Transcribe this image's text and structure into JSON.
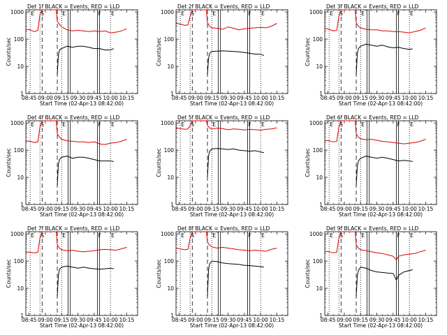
{
  "figure": {
    "xlabel": "Start Time (02-Apr-13 08:42:00)",
    "ylabel": "Counts/sec",
    "x_ticks": [
      "08:45",
      "09:00",
      "09:15",
      "09:30",
      "09:45",
      "10:00",
      "10:15"
    ],
    "x_tick_minutes": [
      525,
      540,
      555,
      570,
      585,
      600,
      615
    ],
    "x_range_minutes": [
      522,
      625
    ],
    "y_ticks": [
      "1",
      "10",
      "100",
      "1000"
    ],
    "y_tick_values": [
      1,
      10,
      100,
      1000
    ],
    "y_range": [
      1,
      1200
    ],
    "y_scale": "log",
    "colors": {
      "events": "#000000",
      "lld": "#dd0000",
      "frame": "#000000"
    },
    "marker_lines": [
      {
        "label": "E",
        "minute": 526,
        "style": "dotted"
      },
      {
        "label": "S",
        "minute": 535,
        "style": "dotted"
      },
      {
        "label": "",
        "minute": 537,
        "style": "dashed"
      },
      {
        "label": "",
        "minute": 551,
        "style": "dashed"
      },
      {
        "label": "E",
        "minute": 555,
        "style": "dotted"
      },
      {
        "label": "",
        "minute": 561,
        "style": "solid"
      },
      {
        "label": "",
        "minute": 563,
        "style": "solid"
      },
      {
        "label": "F",
        "minute": 588,
        "style": "solid"
      },
      {
        "label": "",
        "minute": 590,
        "style": "solid"
      },
      {
        "label": "E",
        "minute": 600,
        "style": "dotted"
      }
    ]
  },
  "chart_data": [
    {
      "type": "line",
      "title": "Det 1f BLACK = Events, RED = LLD",
      "series": [
        {
          "key": "lld",
          "x": [
            522,
            526,
            528,
            530,
            533,
            535,
            537,
            540,
            545,
            550,
            551,
            553,
            555,
            560,
            565,
            570,
            575,
            580,
            585,
            590,
            595,
            600,
            605,
            610,
            615
          ],
          "y": [
            230,
            220,
            200,
            190,
            210,
            800,
            1200,
            1200,
            1200,
            1200,
            450,
            350,
            280,
            220,
            200,
            210,
            200,
            190,
            200,
            190,
            200,
            170,
            180,
            200,
            240
          ]
        },
        {
          "key": "events",
          "x": [
            551,
            552,
            553,
            555,
            560,
            565,
            570,
            575,
            580,
            585,
            590,
            595,
            600,
            603
          ],
          "y": [
            5,
            25,
            40,
            45,
            55,
            50,
            55,
            55,
            50,
            45,
            45,
            40,
            40,
            45
          ]
        }
      ]
    },
    {
      "type": "line",
      "title": "Det 2f BLACK = Events, RED = LLD",
      "series": [
        {
          "key": "lld",
          "x": [
            522,
            526,
            530,
            533,
            535,
            537,
            540,
            545,
            550,
            551,
            553,
            555,
            560,
            565,
            570,
            575,
            580,
            585,
            590,
            595,
            600,
            605,
            610,
            615
          ],
          "y": [
            380,
            360,
            320,
            330,
            700,
            1200,
            1200,
            1200,
            1200,
            400,
            300,
            260,
            250,
            230,
            280,
            250,
            220,
            240,
            250,
            260,
            270,
            260,
            300,
            380
          ]
        },
        {
          "key": "events",
          "x": [
            551,
            552,
            553,
            555,
            560,
            565,
            570,
            575,
            580,
            585,
            590,
            595,
            600,
            603
          ],
          "y": [
            5,
            20,
            30,
            35,
            36,
            37,
            36,
            35,
            34,
            32,
            30,
            28,
            28,
            25
          ]
        }
      ]
    },
    {
      "type": "line",
      "title": "Det 3f BLACK = Events, RED = LLD",
      "series": [
        {
          "key": "lld",
          "x": [
            522,
            526,
            530,
            533,
            535,
            537,
            540,
            545,
            550,
            551,
            553,
            555,
            560,
            565,
            570,
            575,
            580,
            585,
            590,
            595,
            600,
            605,
            610,
            615
          ],
          "y": [
            250,
            230,
            200,
            210,
            700,
            1200,
            1200,
            1200,
            1200,
            400,
            300,
            260,
            230,
            220,
            220,
            200,
            200,
            190,
            190,
            180,
            170,
            190,
            210,
            260
          ]
        },
        {
          "key": "events",
          "x": [
            551,
            552,
            553,
            555,
            560,
            565,
            570,
            575,
            580,
            585,
            590,
            595,
            600,
            603
          ],
          "y": [
            5,
            30,
            45,
            55,
            65,
            60,
            55,
            60,
            52,
            48,
            50,
            45,
            42,
            44
          ]
        }
      ]
    },
    {
      "type": "line",
      "title": "Det 4f BLACK = Events, RED = LLD",
      "series": [
        {
          "key": "lld",
          "x": [
            522,
            526,
            530,
            533,
            535,
            537,
            540,
            545,
            550,
            551,
            553,
            555,
            560,
            565,
            570,
            575,
            580,
            585,
            590,
            595,
            600,
            605,
            610,
            615
          ],
          "y": [
            220,
            210,
            190,
            200,
            700,
            1200,
            1200,
            1200,
            1200,
            400,
            300,
            250,
            220,
            210,
            200,
            200,
            190,
            200,
            170,
            160,
            180,
            190,
            210,
            250
          ]
        },
        {
          "key": "events",
          "x": [
            551,
            552,
            553,
            555,
            560,
            565,
            570,
            575,
            580,
            585,
            590,
            595,
            600,
            603
          ],
          "y": [
            5,
            30,
            45,
            55,
            60,
            50,
            55,
            55,
            50,
            45,
            40,
            40,
            40,
            38
          ]
        }
      ]
    },
    {
      "type": "line",
      "title": "Det 5f BLACK = Events, RED = LLD",
      "series": [
        {
          "key": "lld",
          "x": [
            522,
            526,
            530,
            533,
            535,
            537,
            540,
            545,
            550,
            551,
            553,
            555,
            560,
            565,
            570,
            575,
            580,
            585,
            590,
            595,
            600,
            605,
            610,
            615
          ],
          "y": [
            650,
            620,
            580,
            600,
            800,
            1200,
            1200,
            1200,
            1200,
            800,
            650,
            600,
            640,
            620,
            560,
            600,
            580,
            550,
            580,
            560,
            540,
            580,
            600,
            660
          ]
        },
        {
          "key": "events",
          "x": [
            551,
            552,
            553,
            555,
            560,
            565,
            570,
            575,
            580,
            585,
            590,
            595,
            600,
            603
          ],
          "y": [
            10,
            60,
            90,
            110,
            115,
            110,
            105,
            110,
            100,
            95,
            90,
            95,
            85,
            80
          ]
        }
      ]
    },
    {
      "type": "line",
      "title": "Det 6f BLACK = Events, RED = LLD",
      "series": [
        {
          "key": "lld",
          "x": [
            522,
            526,
            530,
            533,
            535,
            537,
            540,
            545,
            550,
            551,
            553,
            555,
            560,
            565,
            570,
            575,
            580,
            585,
            590,
            595,
            600,
            605,
            610,
            615
          ],
          "y": [
            230,
            220,
            200,
            210,
            700,
            1200,
            1200,
            1200,
            1200,
            400,
            300,
            260,
            240,
            250,
            230,
            210,
            200,
            190,
            180,
            170,
            180,
            190,
            210,
            250
          ]
        },
        {
          "key": "events",
          "x": [
            551,
            552,
            553,
            555,
            560,
            565,
            570,
            575,
            580,
            585,
            590,
            595,
            600,
            603
          ],
          "y": [
            5,
            25,
            40,
            50,
            60,
            55,
            50,
            55,
            50,
            45,
            40,
            42,
            40,
            38
          ]
        }
      ]
    },
    {
      "type": "line",
      "title": "Det 7f BLACK = Events, RED = LLD",
      "series": [
        {
          "key": "lld",
          "x": [
            522,
            526,
            530,
            533,
            535,
            537,
            540,
            545,
            550,
            551,
            553,
            555,
            560,
            565,
            570,
            575,
            580,
            585,
            590,
            595,
            600,
            605,
            610,
            615
          ],
          "y": [
            220,
            210,
            200,
            210,
            700,
            1200,
            1200,
            1200,
            1200,
            400,
            300,
            260,
            240,
            250,
            230,
            220,
            230,
            240,
            260,
            270,
            260,
            250,
            280,
            320
          ]
        },
        {
          "key": "events",
          "x": [
            551,
            552,
            553,
            555,
            560,
            565,
            570,
            575,
            580,
            585,
            590,
            595,
            600,
            603
          ],
          "y": [
            5,
            30,
            50,
            60,
            65,
            60,
            55,
            60,
            55,
            52,
            50,
            52,
            55,
            52
          ]
        }
      ]
    },
    {
      "type": "line",
      "title": "Det 8f BLACK = Events, RED = LLD",
      "series": [
        {
          "key": "lld",
          "x": [
            522,
            526,
            530,
            533,
            535,
            537,
            540,
            545,
            550,
            551,
            553,
            555,
            560,
            565,
            570,
            575,
            580,
            585,
            590,
            595,
            600,
            605,
            610,
            615
          ],
          "y": [
            300,
            280,
            260,
            270,
            700,
            1200,
            1200,
            1200,
            1200,
            500,
            380,
            330,
            300,
            320,
            300,
            280,
            260,
            250,
            240,
            250,
            240,
            230,
            270,
            300
          ]
        },
        {
          "key": "events",
          "x": [
            551,
            552,
            553,
            555,
            560,
            565,
            570,
            575,
            580,
            585,
            590,
            595,
            600,
            603
          ],
          "y": [
            5,
            50,
            80,
            100,
            95,
            85,
            80,
            78,
            75,
            70,
            68,
            65,
            62,
            60
          ]
        }
      ]
    },
    {
      "type": "line",
      "title": "Det 9f BLACK = Events, RED = LLD",
      "series": [
        {
          "key": "lld",
          "x": [
            522,
            526,
            530,
            533,
            535,
            537,
            540,
            545,
            550,
            551,
            553,
            555,
            560,
            565,
            570,
            575,
            580,
            585,
            588,
            590,
            595,
            600,
            605,
            610,
            615
          ],
          "y": [
            230,
            220,
            200,
            210,
            700,
            1200,
            1200,
            1200,
            1200,
            400,
            300,
            260,
            240,
            220,
            200,
            190,
            170,
            150,
            110,
            150,
            170,
            180,
            190,
            220,
            250
          ]
        },
        {
          "key": "events",
          "x": [
            551,
            552,
            553,
            555,
            560,
            565,
            570,
            575,
            580,
            585,
            588,
            590,
            595,
            600,
            603
          ],
          "y": [
            5,
            30,
            45,
            60,
            55,
            45,
            40,
            38,
            36,
            35,
            20,
            30,
            40,
            45,
            48
          ]
        }
      ]
    }
  ]
}
